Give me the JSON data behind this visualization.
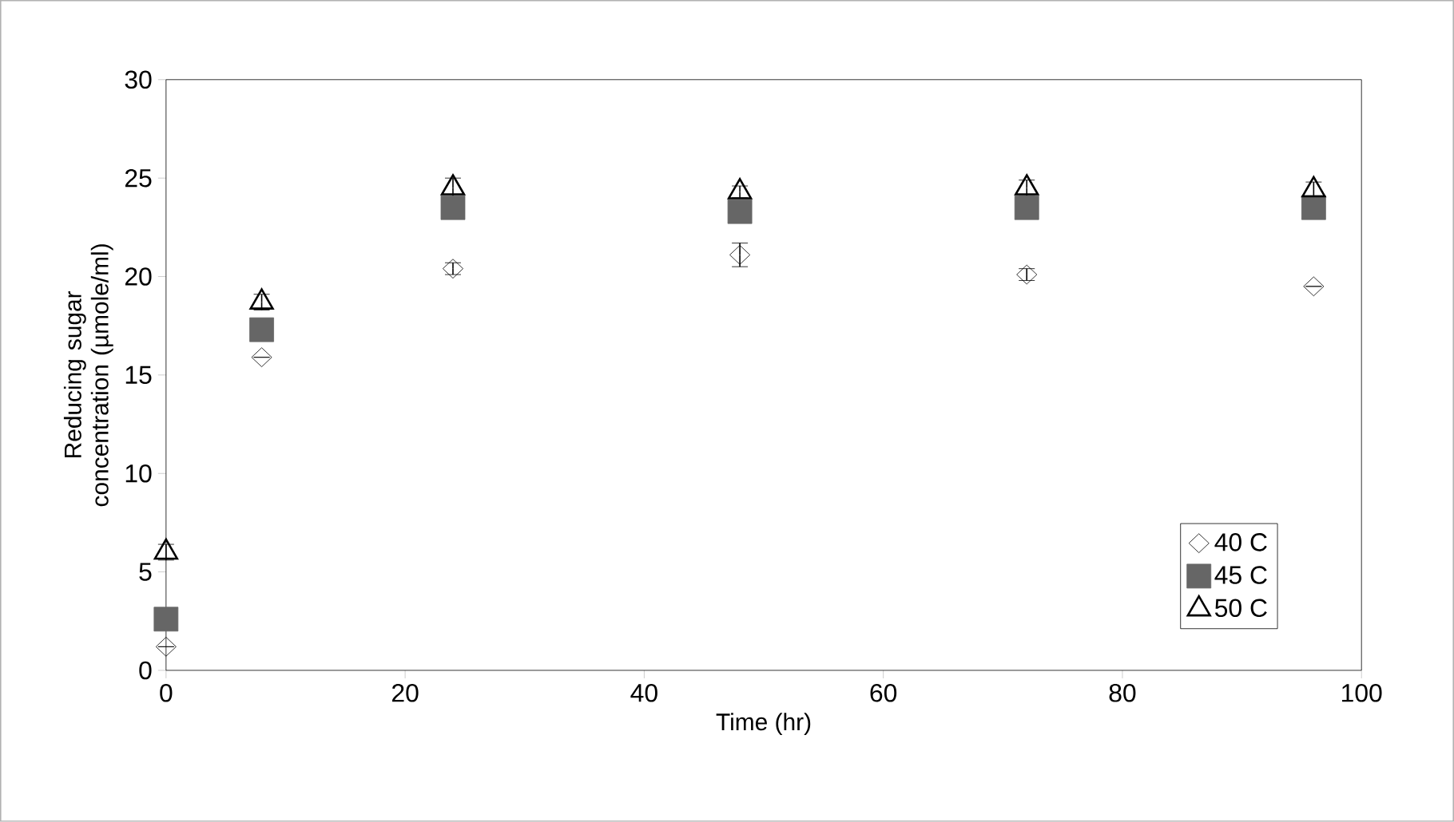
{
  "chart_data": {
    "type": "scatter",
    "xlabel": "Time (hr)",
    "ylabel": "Reducing sugar concentration (µmole/ml)",
    "xlim": [
      0,
      100
    ],
    "xticks": [
      0,
      20,
      40,
      60,
      80,
      100
    ],
    "ylim": [
      0,
      30
    ],
    "yticks": [
      0,
      5,
      10,
      15,
      20,
      25,
      30
    ],
    "grid": false,
    "legend": "bottom right",
    "series": [
      {
        "name": "40 C",
        "color": "#000000",
        "marker": "diamond",
        "x": [
          0,
          8,
          24,
          48,
          72,
          96
        ],
        "values": [
          1.2,
          15.9,
          20.4,
          21.1,
          20.1,
          19.5
        ],
        "errors": [
          null,
          null,
          0.3,
          0.6,
          0.3,
          null
        ]
      },
      {
        "name": "45 C",
        "color": "#666666",
        "marker": "square",
        "x": [
          0,
          8,
          24,
          48,
          72,
          96
        ],
        "values": [
          2.6,
          17.3,
          23.5,
          23.3,
          23.5,
          23.5
        ]
      },
      {
        "name": "50 C",
        "color": "#000000",
        "marker": "triangle",
        "x": [
          0,
          8,
          24,
          48,
          72,
          96
        ],
        "values": [
          6.0,
          18.7,
          24.5,
          24.3,
          24.5,
          24.4
        ],
        "errors": [
          0.4,
          0.4,
          0.5,
          0.3,
          0.4,
          0.4
        ]
      }
    ]
  }
}
